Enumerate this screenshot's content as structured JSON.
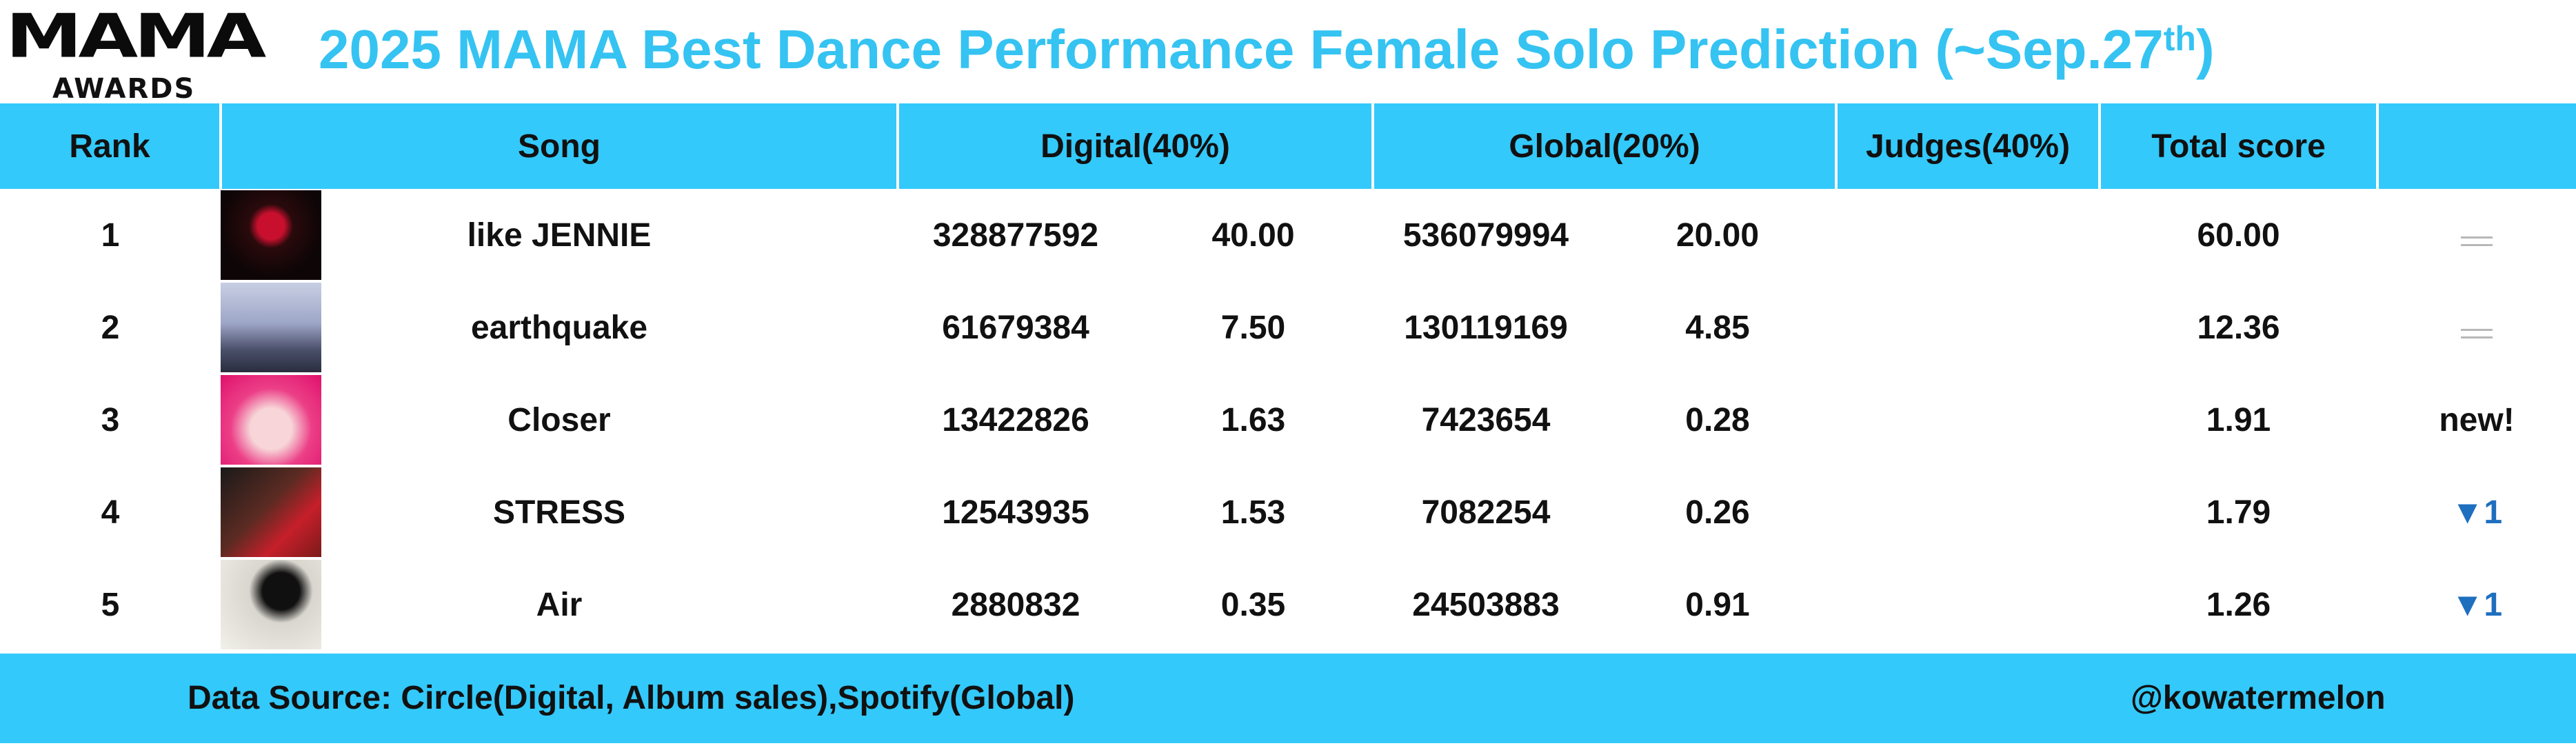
{
  "logo": {
    "main": "MAMA",
    "sub": "AWARDS"
  },
  "title": {
    "text": "2025 MAMA Best Dance Performance Female Solo Prediction (~Sep.27",
    "superscript": "th",
    "suffix": ")",
    "color": "#35c3f2"
  },
  "table": {
    "headers": {
      "rank": "Rank",
      "song": "Song",
      "digital": "Digital(40%)",
      "global": "Global(20%)",
      "judges": "Judges(40%)",
      "total": "Total score",
      "trend": ""
    },
    "rows": [
      {
        "rank": "1",
        "cover_icon": "album-cover-like-jennie",
        "song": "like JENNIE",
        "digital_count": "328877592",
        "digital_score": "40.00",
        "global_count": "536079994",
        "global_score": "20.00",
        "judges": "",
        "total": "60.00",
        "trend": "same",
        "trend_text": ""
      },
      {
        "rank": "2",
        "cover_icon": "album-cover-earthquake",
        "song": "earthquake",
        "digital_count": "61679384",
        "digital_score": "7.50",
        "global_count": "130119169",
        "global_score": "4.85",
        "judges": "",
        "total": "12.36",
        "trend": "same",
        "trend_text": ""
      },
      {
        "rank": "3",
        "cover_icon": "album-cover-closer",
        "song": "Closer",
        "digital_count": "13422826",
        "digital_score": "1.63",
        "global_count": "7423654",
        "global_score": "0.28",
        "judges": "",
        "total": "1.91",
        "trend": "new",
        "trend_text": "new!"
      },
      {
        "rank": "4",
        "cover_icon": "album-cover-stress",
        "song": "STRESS",
        "digital_count": "12543935",
        "digital_score": "1.53",
        "global_count": "7082254",
        "global_score": "0.26",
        "judges": "",
        "total": "1.79",
        "trend": "down",
        "trend_text": "▼1"
      },
      {
        "rank": "5",
        "cover_icon": "album-cover-air",
        "song": "Air",
        "digital_count": "2880832",
        "digital_score": "0.35",
        "global_count": "24503883",
        "global_score": "0.91",
        "judges": "",
        "total": "1.26",
        "trend": "down",
        "trend_text": "▼1"
      }
    ]
  },
  "footer": {
    "source": "Data Source: Circle(Digital, Album sales),Spotify(Global)",
    "credit": "@kowatermelon"
  },
  "colors": {
    "accent": "#33c9fb",
    "trend_down": "#1f6fbf",
    "trend_same": "#b8b8b8"
  }
}
